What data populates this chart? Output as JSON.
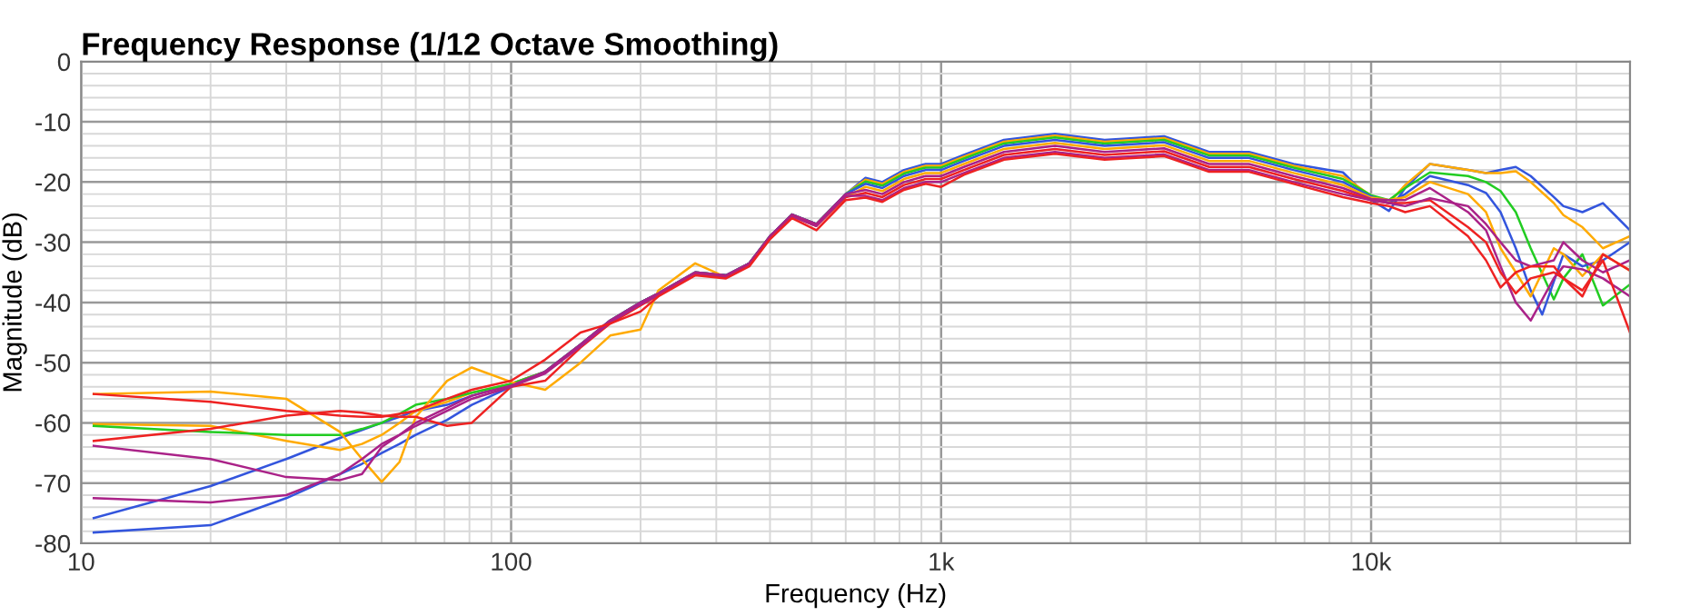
{
  "chart_data": {
    "type": "line",
    "title": "Frequency Response (1/12 Octave Smoothing)",
    "xlabel": "Frequency (Hz)",
    "ylabel": "Magnitude (dB)",
    "log": "x",
    "grid": true,
    "marker": "none",
    "line_style": "solid",
    "xlim": [
      10,
      40000
    ],
    "xticks": [
      10,
      100,
      {
        "value": 1000,
        "label": "1k"
      },
      {
        "value": 10000,
        "label": "10k"
      }
    ],
    "ylim": [
      -80,
      0
    ],
    "yticks": [
      -80,
      -70,
      -60,
      -50,
      -40,
      -30,
      -20,
      -10,
      0
    ],
    "series": [
      {
        "color": "#3355dd",
        "x": [
          10.7,
          20,
          30,
          40,
          45,
          50,
          55,
          60,
          71,
          81,
          100,
          120,
          145,
          170,
          200,
          220,
          268,
          316,
          358,
          400,
          450,
          513,
          600,
          667,
          730,
          820,
          920,
          1000,
          1130,
          1400,
          1840,
          2400,
          3300,
          4200,
          5200,
          6600,
          8600,
          10000,
          11000,
          12000,
          13700,
          16800,
          18500,
          20000,
          21700,
          23500,
          26600,
          28000,
          31000,
          34600,
          40000
        ],
        "values": [
          -75.8,
          -70.5,
          -66,
          -62.5,
          -61.2,
          -60,
          -59,
          -58,
          -57,
          -55.5,
          -53.5,
          -51.5,
          -47,
          -43,
          -40,
          -38.5,
          -35,
          -35.5,
          -33.5,
          -29,
          -25.4,
          -27,
          -22,
          -19.3,
          -20,
          -18,
          -17,
          -17,
          -15.5,
          -13,
          -12,
          -13,
          -12.4,
          -15,
          -15,
          -17,
          -18.4,
          -23,
          -24.8,
          -21,
          -17,
          -18,
          -18.5,
          -18,
          -17.5,
          -19,
          -22.5,
          -24,
          -25,
          -23.5,
          -28
        ]
      },
      {
        "color": "#ffaa00",
        "x": [
          10.7,
          20,
          30,
          40,
          45,
          50,
          55,
          60,
          71,
          81,
          100,
          120,
          145,
          170,
          200,
          220,
          268,
          316,
          358,
          400,
          450,
          513,
          600,
          667,
          730,
          820,
          920,
          1000,
          1130,
          1400,
          1840,
          2400,
          3300,
          4200,
          5200,
          6600,
          8600,
          10000,
          11000,
          12000,
          13700,
          16800,
          18500,
          20000,
          21700,
          23500,
          26600,
          28000,
          31000,
          34600,
          40000
        ],
        "values": [
          -60.2,
          -60.5,
          -63,
          -64.5,
          -63.5,
          -62,
          -60,
          -58,
          -56.5,
          -55,
          -53.5,
          -51.5,
          -47,
          -43,
          -40,
          -38.5,
          -35,
          -35.5,
          -33.5,
          -29,
          -25.4,
          -27,
          -22,
          -19.6,
          -20.3,
          -18.3,
          -17.3,
          -17.3,
          -15.8,
          -13.3,
          -12.3,
          -13.3,
          -12.7,
          -15.3,
          -15.3,
          -17.3,
          -19,
          -22.3,
          -23.5,
          -20.5,
          -17,
          -18,
          -18.5,
          -18.5,
          -18.2,
          -20,
          -23.5,
          -25.5,
          -27.5,
          -31,
          -29
        ]
      },
      {
        "color": "#22cc22",
        "x": [
          10.7,
          20,
          30,
          40,
          45,
          50,
          55,
          60,
          71,
          81,
          100,
          120,
          145,
          170,
          200,
          220,
          268,
          316,
          358,
          400,
          450,
          513,
          600,
          667,
          730,
          820,
          920,
          1000,
          1130,
          1400,
          1840,
          2400,
          3300,
          4200,
          5200,
          6600,
          8600,
          10000,
          11000,
          12000,
          13700,
          16800,
          18500,
          20000,
          21700,
          23500,
          26600,
          28000,
          31000,
          34600,
          40000
        ],
        "values": [
          -60.5,
          -61.5,
          -62,
          -62,
          -61,
          -60,
          -58.5,
          -57,
          -56,
          -55,
          -53.5,
          -51.5,
          -47,
          -43,
          -40,
          -38.5,
          -35,
          -35.5,
          -33.5,
          -29,
          -25.4,
          -27,
          -22,
          -19.9,
          -20.6,
          -18.6,
          -17.6,
          -17.6,
          -16.1,
          -13.6,
          -12.6,
          -13.6,
          -13,
          -15.6,
          -15.6,
          -17.6,
          -19.5,
          -22.2,
          -23,
          -21,
          -18.4,
          -19,
          -20,
          -21.5,
          -25,
          -31,
          -39.5,
          -36,
          -32,
          -40.5,
          -37
        ]
      },
      {
        "color": "#3355dd",
        "x": [
          10.7,
          20,
          30,
          40,
          45,
          50,
          55,
          60,
          71,
          81,
          100,
          120,
          145,
          170,
          200,
          220,
          268,
          316,
          358,
          400,
          450,
          513,
          600,
          667,
          730,
          820,
          920,
          1000,
          1130,
          1400,
          1840,
          2400,
          3300,
          4200,
          5200,
          6600,
          8600,
          10000,
          11000,
          12000,
          13700,
          16800,
          18500,
          20000,
          21700,
          23500,
          25000,
          28000,
          31000,
          34600,
          40000
        ],
        "values": [
          -78.2,
          -77,
          -72.5,
          -68.5,
          -66.8,
          -65,
          -63.5,
          -62,
          -59.5,
          -57,
          -54,
          -51.5,
          -47,
          -43,
          -40,
          -38.5,
          -35,
          -35.5,
          -33.5,
          -29,
          -25.4,
          -27,
          -22,
          -20.3,
          -21,
          -19,
          -18,
          -18,
          -16.5,
          -14,
          -13,
          -14,
          -13.4,
          -16,
          -16,
          -18,
          -20,
          -22.4,
          -23.5,
          -22,
          -19,
          -20.5,
          -21.8,
          -25,
          -31,
          -38,
          -42,
          -32,
          -34,
          -33,
          -30
        ]
      },
      {
        "color": "#ffaa00",
        "x": [
          10.7,
          20,
          30,
          40,
          45,
          50,
          55,
          60,
          71,
          81,
          100,
          120,
          145,
          170,
          200,
          220,
          268,
          316,
          358,
          400,
          450,
          513,
          600,
          667,
          730,
          820,
          920,
          1000,
          1130,
          1400,
          1840,
          2400,
          3300,
          4200,
          5200,
          6600,
          8600,
          10000,
          11000,
          12000,
          13700,
          16800,
          18500,
          20000,
          21700,
          23500,
          26600,
          28000,
          31000,
          34600,
          40000
        ],
        "values": [
          -55.2,
          -54.8,
          -56,
          -61.5,
          -66,
          -69.8,
          -66.5,
          -59,
          -53,
          -50.8,
          -53.2,
          -54.5,
          -50,
          -45.5,
          -44.5,
          -38,
          -33.5,
          -35.8,
          -33.8,
          -29.2,
          -25.5,
          -27.2,
          -22.5,
          -20.8,
          -21.5,
          -19.5,
          -18.5,
          -18.5,
          -17,
          -14.5,
          -13.5,
          -14.5,
          -13.9,
          -16.5,
          -16.5,
          -18.5,
          -20.5,
          -22.6,
          -23,
          -22.5,
          -20,
          -22,
          -25,
          -31,
          -35,
          -39,
          -31,
          -32,
          -35.6,
          -32,
          -34.7
        ]
      },
      {
        "color": "#aa2288",
        "x": [
          10.7,
          20,
          30,
          40,
          45,
          50,
          55,
          60,
          71,
          81,
          100,
          120,
          145,
          170,
          200,
          220,
          268,
          316,
          358,
          400,
          450,
          513,
          600,
          667,
          730,
          820,
          920,
          1000,
          1130,
          1400,
          1840,
          2400,
          3300,
          4200,
          5200,
          6600,
          8600,
          10000,
          11000,
          12000,
          13700,
          16800,
          18500,
          20000,
          21700,
          23500,
          26600,
          28000,
          31000,
          34600,
          40000
        ],
        "values": [
          -63.8,
          -66,
          -69,
          -69.5,
          -68.5,
          -64,
          -62,
          -60,
          -57.5,
          -55.5,
          -53.8,
          -51.5,
          -47,
          -43,
          -40,
          -38.5,
          -35,
          -35.5,
          -33.5,
          -29,
          -25.4,
          -27,
          -22,
          -21.3,
          -22,
          -20,
          -19,
          -19,
          -17.5,
          -15,
          -14,
          -15,
          -14.4,
          -17,
          -17,
          -19,
          -21,
          -22.8,
          -23,
          -23,
          -21,
          -25,
          -28,
          -34,
          -40,
          -43,
          -36,
          -34,
          -34.5,
          -36,
          -39
        ]
      },
      {
        "color": "#ee2222",
        "x": [
          10.7,
          20,
          30,
          40,
          45,
          50,
          55,
          60,
          71,
          81,
          100,
          120,
          145,
          170,
          200,
          220,
          268,
          316,
          358,
          400,
          450,
          513,
          600,
          667,
          730,
          820,
          920,
          1000,
          1130,
          1400,
          1840,
          2400,
          3300,
          4200,
          5200,
          6600,
          8600,
          10000,
          11000,
          12000,
          13700,
          16800,
          18500,
          20000,
          21700,
          23500,
          26600,
          28000,
          31000,
          34600,
          40000
        ],
        "values": [
          -63,
          -61,
          -58.8,
          -58,
          -58.3,
          -58.8,
          -59,
          -59,
          -60.5,
          -60,
          -54,
          -53,
          -47.5,
          -43.5,
          -40.5,
          -38.8,
          -35.3,
          -35.8,
          -33.8,
          -29.3,
          -25.7,
          -27.3,
          -22.5,
          -21.8,
          -22.5,
          -20.5,
          -19.5,
          -19.5,
          -18,
          -15.5,
          -14.5,
          -15.5,
          -14.9,
          -17.5,
          -17.5,
          -19.5,
          -21.5,
          -23,
          -23.5,
          -23.5,
          -23,
          -27.5,
          -30,
          -35,
          -38.5,
          -36,
          -35,
          -36,
          -38,
          -33,
          -45
        ]
      },
      {
        "color": "#aa2288",
        "x": [
          10.7,
          20,
          30,
          40,
          45,
          50,
          55,
          60,
          71,
          81,
          100,
          120,
          145,
          170,
          200,
          220,
          268,
          316,
          358,
          400,
          450,
          513,
          600,
          667,
          730,
          820,
          920,
          1000,
          1130,
          1400,
          1840,
          2400,
          3300,
          4200,
          5200,
          6600,
          8600,
          10000,
          11000,
          12000,
          13700,
          16800,
          18500,
          20000,
          21700,
          23500,
          26600,
          28000,
          31000,
          34600,
          40000
        ],
        "values": [
          -72.5,
          -73.2,
          -72,
          -68.5,
          -66,
          -63.5,
          -62,
          -60.5,
          -58,
          -56,
          -54,
          -51.8,
          -47.3,
          -43.3,
          -40.3,
          -38.8,
          -35.3,
          -35.8,
          -33.8,
          -29.3,
          -25.7,
          -27.3,
          -22.3,
          -22.3,
          -23,
          -21,
          -20,
          -20,
          -18.5,
          -16,
          -15,
          -16,
          -15.4,
          -18,
          -18,
          -20,
          -22,
          -23,
          -23.5,
          -24,
          -22.7,
          -24,
          -27,
          -30,
          -33,
          -34,
          -33,
          -30,
          -33,
          -35,
          -33
        ]
      },
      {
        "color": "#ee2222",
        "x": [
          10.7,
          20,
          30,
          40,
          45,
          50,
          55,
          60,
          71,
          81,
          100,
          120,
          145,
          170,
          200,
          220,
          268,
          316,
          358,
          400,
          450,
          513,
          600,
          667,
          730,
          820,
          920,
          1000,
          1130,
          1400,
          1840,
          2400,
          3300,
          4200,
          5200,
          6600,
          8600,
          10000,
          11000,
          12000,
          13700,
          16800,
          18500,
          20000,
          21700,
          23500,
          26600,
          28000,
          31000,
          34600,
          40000
        ],
        "values": [
          -55.2,
          -56.5,
          -58,
          -58.8,
          -59,
          -59,
          -58.5,
          -58,
          -56,
          -54.5,
          -53,
          -49.5,
          -45,
          -43.5,
          -41.5,
          -39,
          -35.5,
          -36,
          -34,
          -29.5,
          -26,
          -28,
          -23,
          -22.6,
          -23.3,
          -21.3,
          -20.3,
          -20.8,
          -18.8,
          -16.3,
          -15.3,
          -16.3,
          -15.7,
          -18.3,
          -18.3,
          -20.3,
          -22.5,
          -23.5,
          -24,
          -25,
          -24,
          -29,
          -33,
          -37.5,
          -35,
          -34,
          -34,
          -36,
          -39,
          -32,
          -34.7
        ]
      }
    ]
  }
}
